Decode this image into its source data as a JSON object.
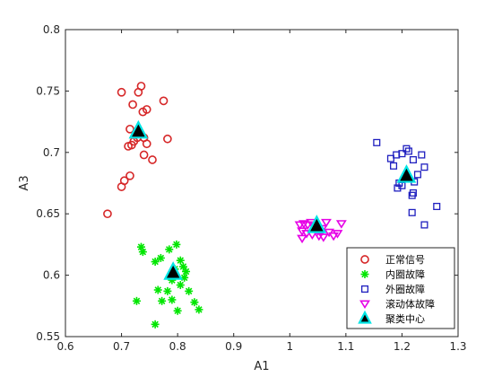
{
  "chart_data": {
    "type": "scatter",
    "title": "",
    "xlabel": "A1",
    "ylabel": "A3",
    "xlim": [
      0.6,
      1.3
    ],
    "ylim": [
      0.55,
      0.8
    ],
    "xticks": [
      "0.6",
      "0.7",
      "0.8",
      "0.9",
      "1",
      "1.1",
      "1.2",
      "1.3"
    ],
    "yticks": [
      "0.55",
      "0.6",
      "0.65",
      "0.7",
      "0.75",
      "0.8"
    ],
    "grid": false,
    "legend_position": "bottom-right",
    "series": [
      {
        "name": "正常信号",
        "marker": "circle",
        "color": "#d62728",
        "points": [
          [
            0.675,
            0.65
          ],
          [
            0.7,
            0.672
          ],
          [
            0.705,
            0.677
          ],
          [
            0.715,
            0.681
          ],
          [
            0.7,
            0.749
          ],
          [
            0.72,
            0.739
          ],
          [
            0.73,
            0.749
          ],
          [
            0.735,
            0.754
          ],
          [
            0.738,
            0.733
          ],
          [
            0.745,
            0.735
          ],
          [
            0.775,
            0.742
          ],
          [
            0.715,
            0.719
          ],
          [
            0.718,
            0.706
          ],
          [
            0.722,
            0.709
          ],
          [
            0.728,
            0.712
          ],
          [
            0.74,
            0.712
          ],
          [
            0.74,
            0.698
          ],
          [
            0.745,
            0.707
          ],
          [
            0.755,
            0.694
          ],
          [
            0.782,
            0.711
          ],
          [
            0.712,
            0.705
          ]
        ]
      },
      {
        "name": "内圈故障",
        "marker": "asterisk",
        "color": "#00e600",
        "points": [
          [
            0.735,
            0.623
          ],
          [
            0.738,
            0.619
          ],
          [
            0.76,
            0.611
          ],
          [
            0.77,
            0.614
          ],
          [
            0.785,
            0.621
          ],
          [
            0.798,
            0.625
          ],
          [
            0.805,
            0.612
          ],
          [
            0.795,
            0.605
          ],
          [
            0.81,
            0.607
          ],
          [
            0.815,
            0.603
          ],
          [
            0.812,
            0.598
          ],
          [
            0.79,
            0.596
          ],
          [
            0.765,
            0.588
          ],
          [
            0.782,
            0.587
          ],
          [
            0.805,
            0.592
          ],
          [
            0.82,
            0.587
          ],
          [
            0.727,
            0.579
          ],
          [
            0.772,
            0.579
          ],
          [
            0.79,
            0.58
          ],
          [
            0.83,
            0.578
          ],
          [
            0.838,
            0.572
          ],
          [
            0.8,
            0.571
          ],
          [
            0.76,
            0.56
          ]
        ]
      },
      {
        "name": "外圈故障",
        "marker": "square",
        "color": "#1f1fbf",
        "points": [
          [
            1.155,
            0.708
          ],
          [
            1.185,
            0.689
          ],
          [
            1.18,
            0.695
          ],
          [
            1.19,
            0.698
          ],
          [
            1.2,
            0.699
          ],
          [
            1.208,
            0.703
          ],
          [
            1.212,
            0.701
          ],
          [
            1.22,
            0.694
          ],
          [
            1.235,
            0.698
          ],
          [
            1.195,
            0.675
          ],
          [
            1.192,
            0.671
          ],
          [
            1.2,
            0.673
          ],
          [
            1.21,
            0.679
          ],
          [
            1.222,
            0.676
          ],
          [
            1.22,
            0.667
          ],
          [
            1.218,
            0.665
          ],
          [
            1.24,
            0.688
          ],
          [
            1.218,
            0.651
          ],
          [
            1.24,
            0.641
          ],
          [
            1.262,
            0.656
          ],
          [
            1.228,
            0.682
          ]
        ]
      },
      {
        "name": "滚动体故障",
        "marker": "triangle-down",
        "color": "#e600e6",
        "points": [
          [
            1.018,
            0.641
          ],
          [
            1.025,
            0.642
          ],
          [
            1.032,
            0.641
          ],
          [
            1.038,
            0.643
          ],
          [
            1.022,
            0.636
          ],
          [
            1.03,
            0.634
          ],
          [
            1.04,
            0.633
          ],
          [
            1.05,
            0.636
          ],
          [
            1.058,
            0.638
          ],
          [
            1.065,
            0.643
          ],
          [
            1.07,
            0.635
          ],
          [
            1.078,
            0.632
          ],
          [
            1.085,
            0.634
          ],
          [
            1.092,
            0.642
          ],
          [
            1.052,
            0.632
          ],
          [
            1.022,
            0.63
          ],
          [
            1.045,
            0.64
          ],
          [
            1.06,
            0.631
          ]
        ]
      },
      {
        "name": "聚类中心",
        "marker": "triangle-up",
        "color": "#00e5e5",
        "points": [
          [
            0.73,
            0.717
          ],
          [
            0.792,
            0.602
          ],
          [
            1.208,
            0.681
          ],
          [
            1.048,
            0.64
          ]
        ]
      }
    ]
  }
}
